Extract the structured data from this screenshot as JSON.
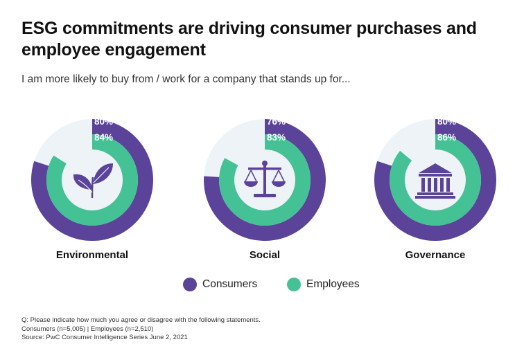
{
  "colors": {
    "consumers": "#5b4399",
    "employees": "#45c196",
    "track": "#eef3f7",
    "icon": "#5b4399"
  },
  "header": {
    "title": "ESG commitments are driving consumer purchases and employee engagement",
    "subtitle": "I am more likely to buy from / work for a company that stands up for..."
  },
  "chart_data": {
    "type": "donut",
    "categories": [
      "Environmental",
      "Social",
      "Governance"
    ],
    "icons": [
      "leaves-icon",
      "scales-icon",
      "courthouse-icon"
    ],
    "series": [
      {
        "name": "Consumers",
        "values": [
          80,
          76,
          80
        ],
        "labels": [
          "80%",
          "76%",
          "80%"
        ]
      },
      {
        "name": "Employees",
        "values": [
          84,
          83,
          86
        ],
        "labels": [
          "84%",
          "83%",
          "86%"
        ]
      }
    ],
    "legend": "bottom-center"
  },
  "legend": {
    "consumers_label": "Consumers",
    "employees_label": "Employees"
  },
  "footnotes": {
    "question": "Q: Please indicate how much you agree or disagree with the following statements.",
    "sample": "Consumers (n=5,005) | Employees (n=2,510)",
    "source": "Source: PwC Consumer Intelligence Series June 2, 2021"
  }
}
